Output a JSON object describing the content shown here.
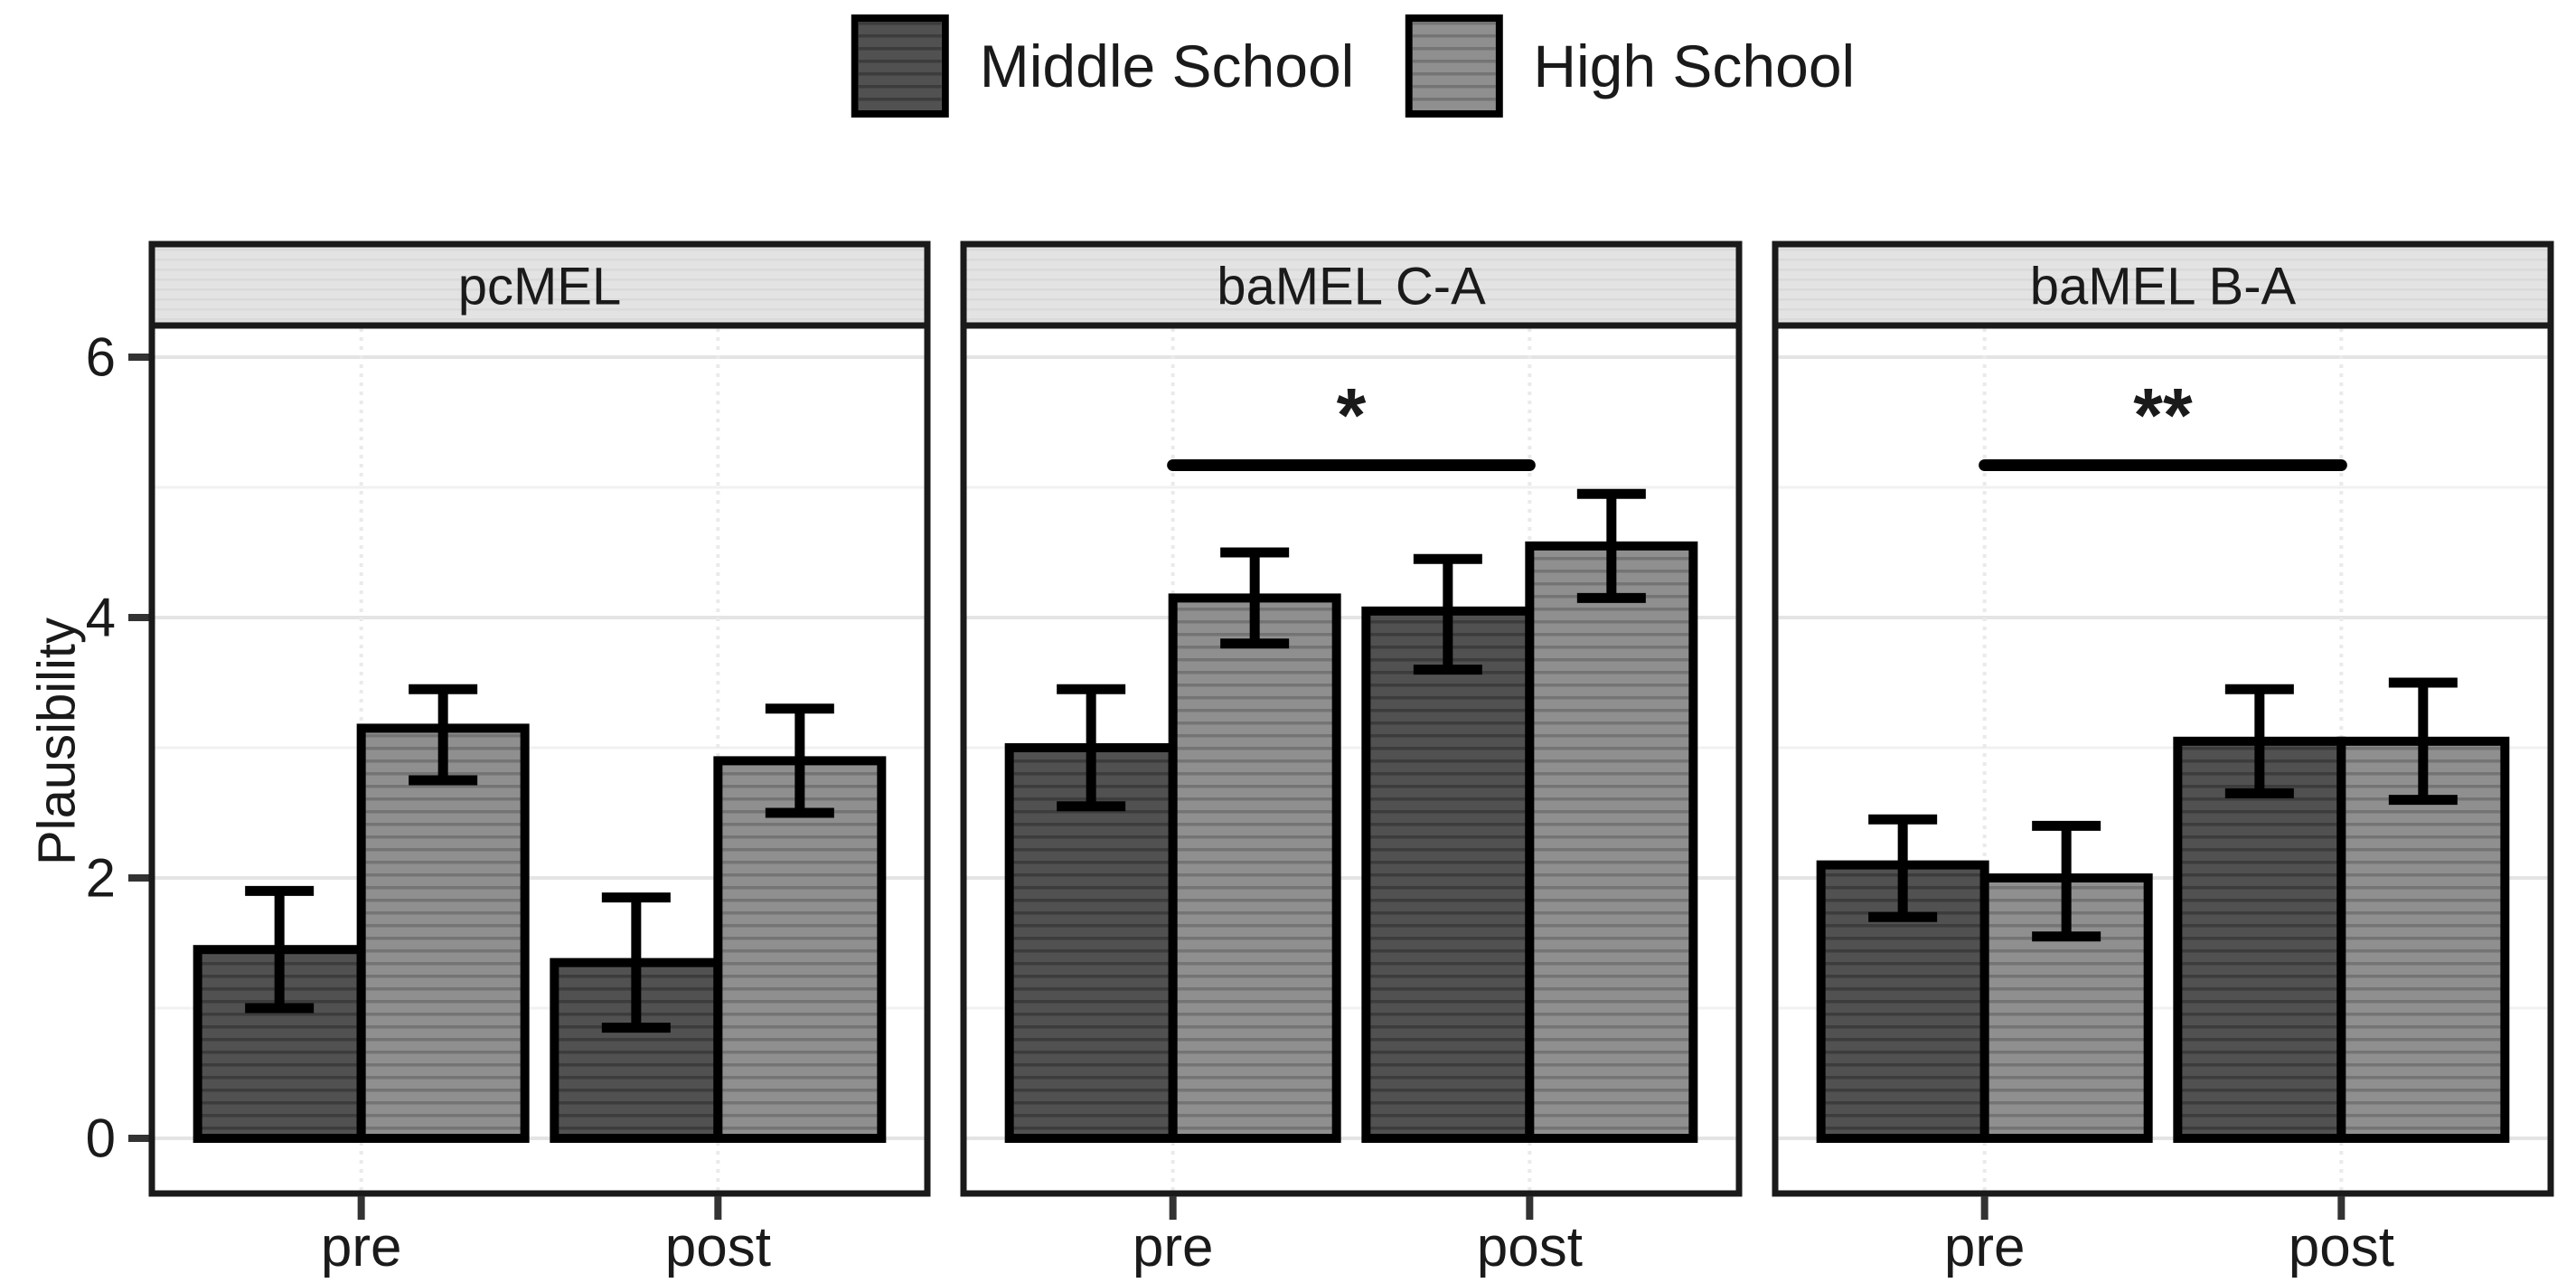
{
  "legend": {
    "items": [
      {
        "label": "Middle School"
      },
      {
        "label": "High School"
      }
    ]
  },
  "chart_data": {
    "type": "bar",
    "title": "",
    "xlabel": "",
    "ylabel": "Plausibility",
    "ylim": [
      -0.42,
      6.25
    ],
    "y_axis": {
      "ticks": [
        0,
        2,
        4,
        6
      ],
      "minor_ticks": [
        1,
        3,
        5
      ]
    },
    "categories": [
      "pre",
      "post"
    ],
    "series_names": [
      "Middle School",
      "High School"
    ],
    "legend_position": "top-center",
    "grid": "major-and-minor-horizontal, faint vertical at group centers",
    "facets": [
      {
        "label": "pcMEL",
        "series": [
          {
            "name": "Middle School",
            "values": [
              1.45,
              1.35
            ],
            "ci_low": [
              1.0,
              0.85
            ],
            "ci_high": [
              1.9,
              1.85
            ]
          },
          {
            "name": "High School",
            "values": [
              3.15,
              2.9
            ],
            "ci_low": [
              2.75,
              2.5
            ],
            "ci_high": [
              3.45,
              3.3
            ]
          }
        ],
        "significance": null
      },
      {
        "label": "baMEL C-A",
        "series": [
          {
            "name": "Middle School",
            "values": [
              3.0,
              4.05
            ],
            "ci_low": [
              2.55,
              3.6
            ],
            "ci_high": [
              3.45,
              4.45
            ]
          },
          {
            "name": "High School",
            "values": [
              4.15,
              4.55
            ],
            "ci_low": [
              3.8,
              4.15
            ],
            "ci_high": [
              4.5,
              4.95
            ]
          }
        ],
        "significance": {
          "label": "*",
          "from": "pre",
          "to": "post",
          "y": 5.17,
          "label_y": 5.55
        }
      },
      {
        "label": "baMEL B-A",
        "series": [
          {
            "name": "Middle School",
            "values": [
              2.1,
              3.05
            ],
            "ci_low": [
              1.7,
              2.65
            ],
            "ci_high": [
              2.45,
              3.45
            ]
          },
          {
            "name": "High School",
            "values": [
              2.0,
              3.05
            ],
            "ci_low": [
              1.55,
              2.6
            ],
            "ci_high": [
              2.4,
              3.5
            ]
          }
        ],
        "significance": {
          "label": "**",
          "from": "pre",
          "to": "post",
          "y": 5.17,
          "label_y": 5.55
        }
      }
    ],
    "colors": {
      "middle_school_fill": "#515151",
      "middle_school_stripe": "#3C3C3C",
      "high_school_fill": "#8F8F8F",
      "high_school_stripe": "#747474",
      "strip_bg": "#E3E3E3",
      "strip_stripe": "#DADADA",
      "grid_major": "#E4E4E4",
      "grid_minor": "#F1F1F1",
      "grid_vertical": "#EAEAEA",
      "panel_border": "#1A1A1A",
      "bar_border": "#000000",
      "error_bar": "#000000",
      "significance_line": "#000000",
      "text": "#1A1A1A",
      "background": "#FFFFFF"
    }
  }
}
